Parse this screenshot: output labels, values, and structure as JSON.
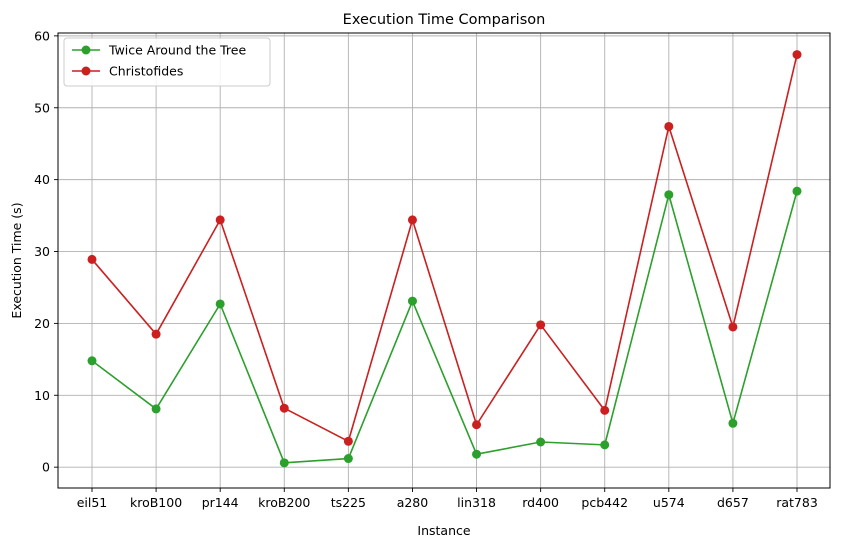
{
  "chart_data": {
    "type": "line",
    "title": "Execution Time Comparison",
    "xlabel": "Instance",
    "ylabel": "Execution Time (s)",
    "categories": [
      "eil51",
      "kroB100",
      "pr144",
      "kroB200",
      "ts225",
      "a280",
      "lin318",
      "rd400",
      "pcb442",
      "u574",
      "d657",
      "rat783"
    ],
    "series": [
      {
        "name": "Twice Around the Tree",
        "color": "#2ca02c",
        "values": [
          14.8,
          8.1,
          22.7,
          0.6,
          1.2,
          23.1,
          1.8,
          3.5,
          3.1,
          37.9,
          6.1,
          38.4
        ]
      },
      {
        "name": "Christofides",
        "color": "#cc1f1f",
        "values": [
          28.9,
          18.5,
          34.4,
          8.2,
          3.6,
          34.4,
          5.9,
          19.8,
          7.9,
          47.4,
          19.5,
          57.4
        ]
      }
    ],
    "ylim": [
      -2.9,
      60.4
    ],
    "yticks": [
      0,
      10,
      20,
      30,
      40,
      50,
      60
    ],
    "grid": true,
    "legend_position": "top-left",
    "marker": "circle"
  }
}
